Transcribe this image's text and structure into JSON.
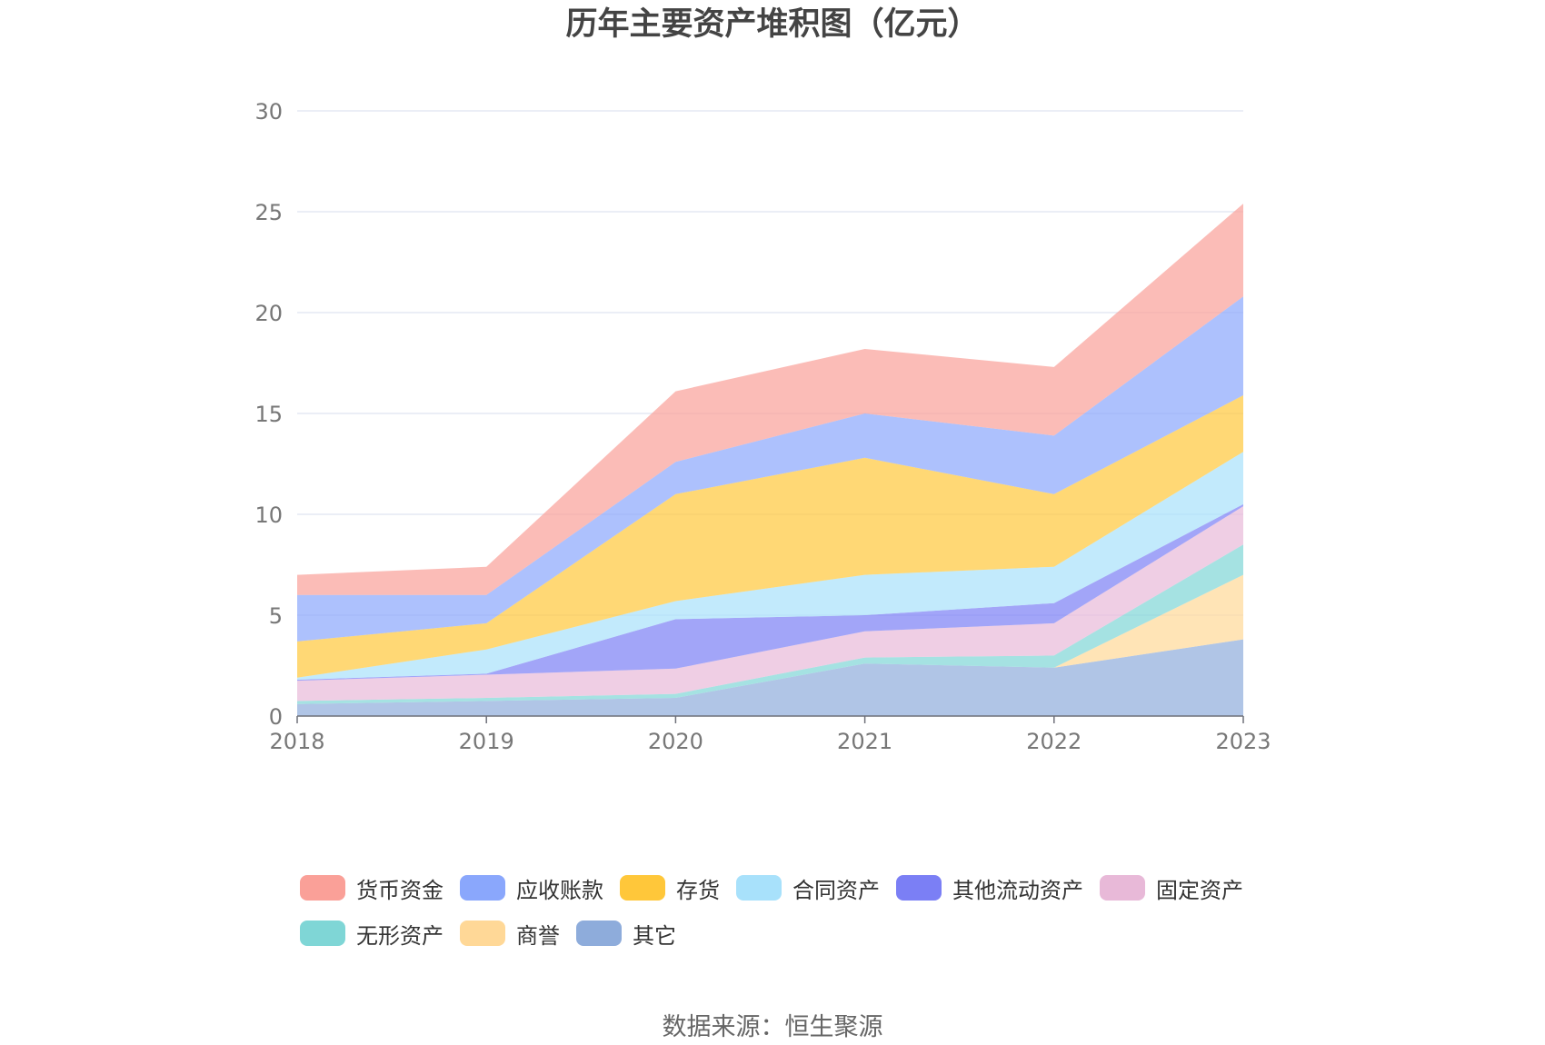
{
  "chart_data": {
    "type": "area",
    "stacked": true,
    "title": "历年主要资产堆积图（亿元）",
    "categories": [
      "2018",
      "2019",
      "2020",
      "2021",
      "2022",
      "2023"
    ],
    "ylim": [
      0,
      30
    ],
    "yticks": [
      0,
      5,
      10,
      15,
      20,
      25,
      30
    ],
    "grid": true,
    "legend_position": "bottom",
    "series": [
      {
        "name": "其它",
        "color": "#8eacdb",
        "values": [
          0.6,
          0.75,
          0.9,
          2.6,
          2.4,
          3.8
        ]
      },
      {
        "name": "商誉",
        "color": "#ffd897",
        "values": [
          0,
          0,
          0,
          0,
          0,
          3.2
        ]
      },
      {
        "name": "无形资产",
        "color": "#7fd6d6",
        "values": [
          0.15,
          0.15,
          0.2,
          0.3,
          0.6,
          1.5
        ]
      },
      {
        "name": "固定资产",
        "color": "#e8b9d8",
        "values": [
          1.0,
          1.15,
          1.25,
          1.3,
          1.6,
          1.9
        ]
      },
      {
        "name": "其他流动资产",
        "color": "#7b7ff5",
        "values": [
          0.05,
          0.05,
          2.45,
          0.8,
          1.0,
          0.1
        ]
      },
      {
        "name": "合同资产",
        "color": "#a8e1fb",
        "values": [
          0.1,
          1.2,
          0.9,
          2.0,
          1.8,
          2.6
        ]
      },
      {
        "name": "存货",
        "color": "#ffc73a",
        "values": [
          1.8,
          1.3,
          5.3,
          5.8,
          3.6,
          2.8
        ]
      },
      {
        "name": "应收账款",
        "color": "#8aa7fc",
        "values": [
          2.3,
          1.4,
          1.6,
          2.2,
          2.9,
          4.9
        ]
      },
      {
        "name": "货币资金",
        "color": "#faa098",
        "values": [
          1.0,
          1.4,
          3.5,
          3.2,
          3.4,
          4.6
        ]
      }
    ],
    "legend_order": [
      "货币资金",
      "应收账款",
      "存货",
      "合同资产",
      "其他流动资产",
      "固定资产",
      "无形资产",
      "商誉",
      "其它"
    ]
  },
  "footer": {
    "source": "数据来源：恒生聚源"
  }
}
